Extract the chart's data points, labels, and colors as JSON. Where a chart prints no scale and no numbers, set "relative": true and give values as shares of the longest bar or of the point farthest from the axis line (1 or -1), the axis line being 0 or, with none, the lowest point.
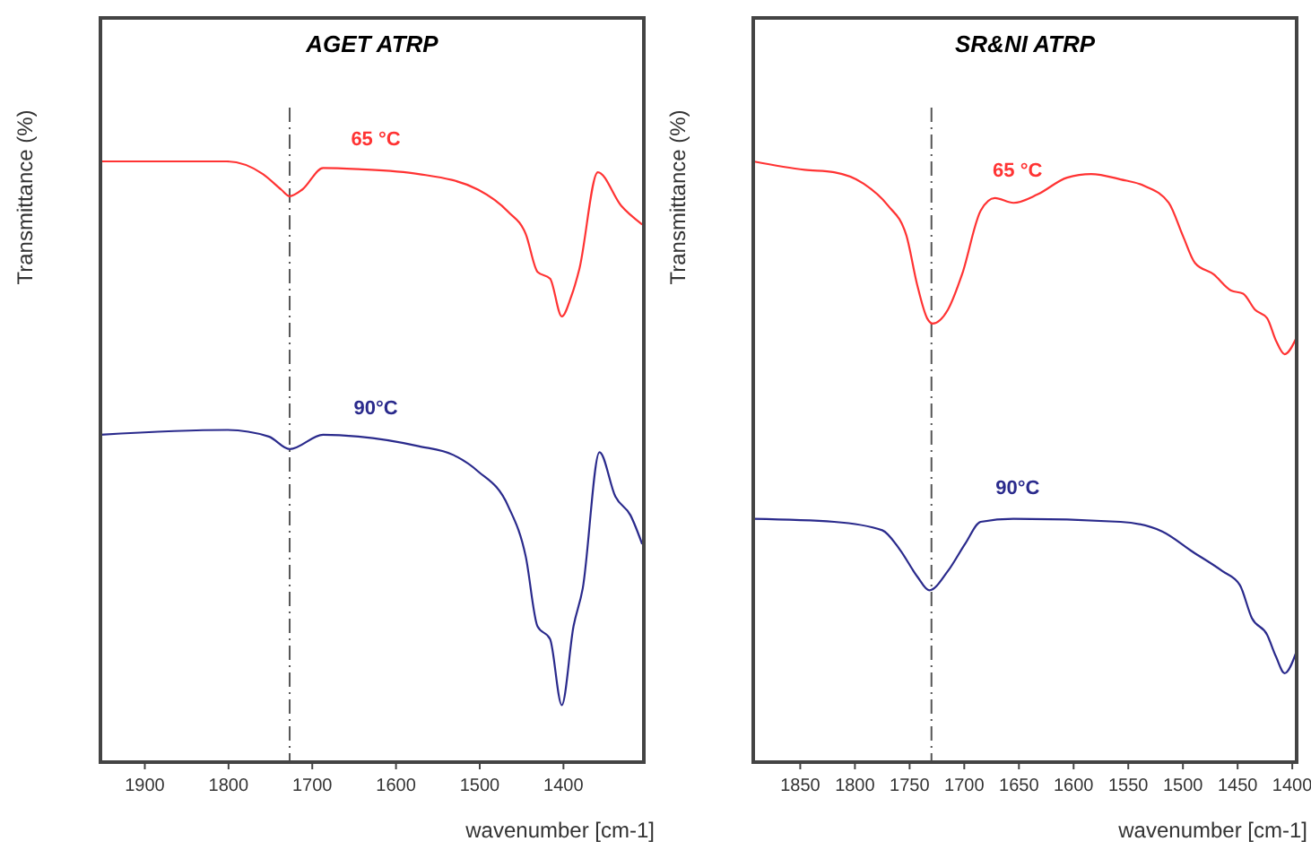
{
  "chart_data": [
    {
      "type": "line",
      "title": "AGET ATRP",
      "xlabel": "wavenumber [cm-1]",
      "ylabel": "Transmittance (%)",
      "relative": true,
      "tick_labels": "x",
      "xlim": [
        1953,
        1304
      ],
      "xticks": [
        1900,
        1800,
        1700,
        1600,
        1500,
        1400
      ],
      "ref_lines": [
        {
          "axis": "x",
          "value": 1727,
          "line_style": "dashed",
          "color": "#555555"
        }
      ],
      "series": [
        {
          "name": "65 °C",
          "color": "#ff3333",
          "x": [
            1953,
            1802,
            1759,
            1737,
            1727,
            1712,
            1687,
            1645,
            1573,
            1502,
            1466,
            1445,
            1431,
            1416,
            1402,
            1391,
            1381,
            1359,
            1331,
            1306
          ],
          "values": [
            1.0,
            1.0,
            0.979,
            0.953,
            0.942,
            0.953,
            0.989,
            0.987,
            0.979,
            0.953,
            0.916,
            0.879,
            0.816,
            0.805,
            0.742,
            0.774,
            0.821,
            0.982,
            0.926,
            0.895
          ]
        },
        {
          "name": "90°C",
          "color": "#2a2a8c",
          "x": [
            1953,
            1802,
            1752,
            1727,
            1687,
            1645,
            1573,
            1531,
            1502,
            1466,
            1445,
            1431,
            1416,
            1402,
            1388,
            1377,
            1357,
            1338,
            1320,
            1306
          ],
          "values": [
            0.545,
            0.553,
            0.542,
            0.521,
            0.545,
            0.542,
            0.526,
            0.511,
            0.484,
            0.426,
            0.342,
            0.226,
            0.205,
            0.095,
            0.226,
            0.289,
            0.516,
            0.442,
            0.411,
            0.363
          ]
        }
      ]
    },
    {
      "type": "line",
      "title": "SR&NI ATRP",
      "xlabel": "wavenumber [cm-1]",
      "ylabel": "Transmittance (%)",
      "relative": true,
      "tick_labels": "x",
      "xlim": [
        1893,
        1396
      ],
      "xticks": [
        1850,
        1800,
        1750,
        1700,
        1650,
        1600,
        1550,
        1500,
        1450,
        1400
      ],
      "ref_lines": [
        {
          "axis": "x",
          "value": 1730,
          "line_style": "dashed",
          "color": "#555555"
        }
      ],
      "series": [
        {
          "name": "65 °C",
          "color": "#ff3333",
          "x": [
            1893,
            1846,
            1819,
            1792,
            1770,
            1753,
            1743,
            1734,
            1729,
            1715,
            1702,
            1685,
            1672,
            1655,
            1633,
            1606,
            1584,
            1557,
            1535,
            1513,
            1500,
            1489,
            1472,
            1456,
            1445,
            1434,
            1423,
            1415,
            1407,
            1396
          ],
          "values": [
            1.0,
            0.986,
            0.982,
            0.963,
            0.927,
            0.877,
            0.794,
            0.739,
            0.73,
            0.753,
            0.812,
            0.918,
            0.939,
            0.931,
            0.945,
            0.973,
            0.979,
            0.97,
            0.959,
            0.931,
            0.876,
            0.831,
            0.812,
            0.785,
            0.78,
            0.753,
            0.739,
            0.702,
            0.679,
            0.707
          ]
        },
        {
          "name": "90°C",
          "color": "#2a2a8c",
          "x": [
            1893,
            1819,
            1775,
            1759,
            1743,
            1732,
            1715,
            1699,
            1685,
            1655,
            1557,
            1519,
            1491,
            1464,
            1448,
            1437,
            1423,
            1415,
            1407,
            1396
          ],
          "values": [
            0.405,
            0.4,
            0.386,
            0.354,
            0.309,
            0.286,
            0.318,
            0.364,
            0.4,
            0.405,
            0.4,
            0.384,
            0.35,
            0.318,
            0.295,
            0.24,
            0.212,
            0.176,
            0.148,
            0.185
          ]
        }
      ]
    }
  ]
}
